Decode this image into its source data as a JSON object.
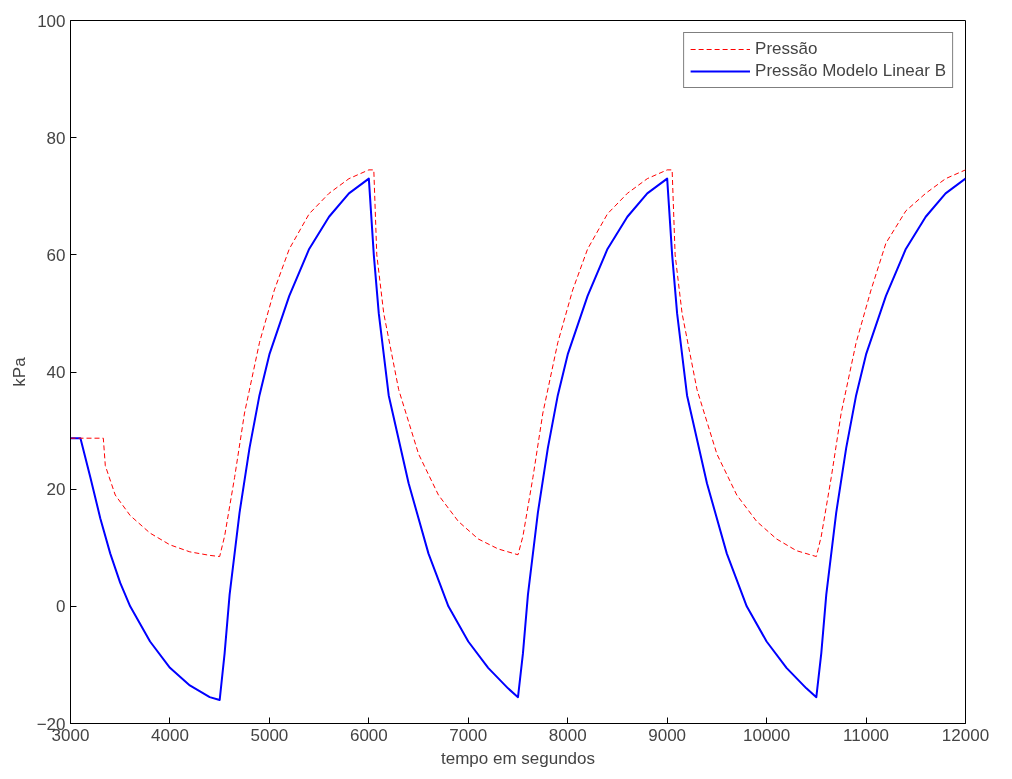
{
  "chart_data": {
    "type": "line",
    "xlabel": "tempo em segundos",
    "ylabel": "kPa",
    "xlim": [
      3000,
      12000
    ],
    "ylim": [
      -20,
      100
    ],
    "xticks": [
      3000,
      4000,
      5000,
      6000,
      7000,
      8000,
      9000,
      10000,
      11000,
      12000
    ],
    "yticks": [
      -20,
      0,
      20,
      40,
      60,
      80,
      100
    ],
    "grid": false,
    "legend": "top right",
    "series": [
      {
        "name": "Pressão",
        "color": "#ff0000",
        "line_style": "dashed",
        "x": [
          3000,
          3330,
          3350,
          3450,
          3600,
          3800,
          4000,
          4200,
          4400,
          4500,
          4550,
          4650,
          4750,
          4900,
          5050,
          5200,
          5400,
          5600,
          5800,
          6000,
          6050,
          6080,
          6150,
          6300,
          6500,
          6700,
          6900,
          7100,
          7300,
          7500,
          7550,
          7650,
          7750,
          7900,
          8050,
          8200,
          8400,
          8600,
          8800,
          9000,
          9050,
          9080,
          9150,
          9300,
          9500,
          9700,
          9900,
          10100,
          10300,
          10500,
          10550,
          10650,
          10750,
          10900,
          11050,
          11200,
          11400,
          11600,
          11800,
          12000
        ],
        "values": [
          28.7,
          28.7,
          24,
          19,
          15.5,
          12.5,
          10.5,
          9.3,
          8.7,
          8.5,
          12,
          22,
          33,
          45,
          54,
          61,
          67,
          70.5,
          73,
          74.5,
          74.5,
          60,
          50,
          37,
          26,
          19,
          14.5,
          11.5,
          9.8,
          8.8,
          12,
          22,
          33,
          45,
          54,
          61,
          67,
          70.5,
          73,
          74.5,
          74.5,
          60,
          50,
          37,
          26,
          19,
          14.5,
          11.5,
          9.5,
          8.5,
          12,
          22,
          33,
          45,
          54,
          62,
          67.5,
          70.5,
          73,
          74.5
        ]
      },
      {
        "name": "Pressão Modelo Linear B",
        "color": "#0000ff",
        "line_style": "solid",
        "x": [
          3000,
          3100,
          3200,
          3300,
          3400,
          3500,
          3600,
          3800,
          4000,
          4200,
          4400,
          4500,
          4550,
          4600,
          4700,
          4800,
          4900,
          5000,
          5200,
          5400,
          5600,
          5800,
          6000,
          6050,
          6100,
          6200,
          6400,
          6600,
          6800,
          7000,
          7200,
          7400,
          7500,
          7550,
          7600,
          7700,
          7800,
          7900,
          8000,
          8200,
          8400,
          8600,
          8800,
          9000,
          9050,
          9100,
          9200,
          9400,
          9600,
          9800,
          10000,
          10200,
          10400,
          10500,
          10550,
          10600,
          10700,
          10800,
          10900,
          11000,
          11200,
          11400,
          11600,
          11800,
          12000
        ],
        "values": [
          28.7,
          28.7,
          22,
          15,
          9,
          4,
          0,
          -6,
          -10.5,
          -13.5,
          -15.5,
          -16,
          -8,
          2,
          16,
          27,
          36,
          43,
          53,
          61,
          66.5,
          70.5,
          73,
          60,
          50,
          36,
          21,
          9,
          0,
          -6,
          -10.5,
          -14,
          -15.5,
          -8,
          2,
          16,
          27,
          36,
          43,
          53,
          61,
          66.5,
          70.5,
          73,
          60,
          50,
          36,
          21,
          9,
          0,
          -6,
          -10.5,
          -14,
          -15.5,
          -8,
          2,
          16,
          27,
          36,
          43,
          53,
          61,
          66.5,
          70.5,
          73
        ]
      }
    ]
  }
}
